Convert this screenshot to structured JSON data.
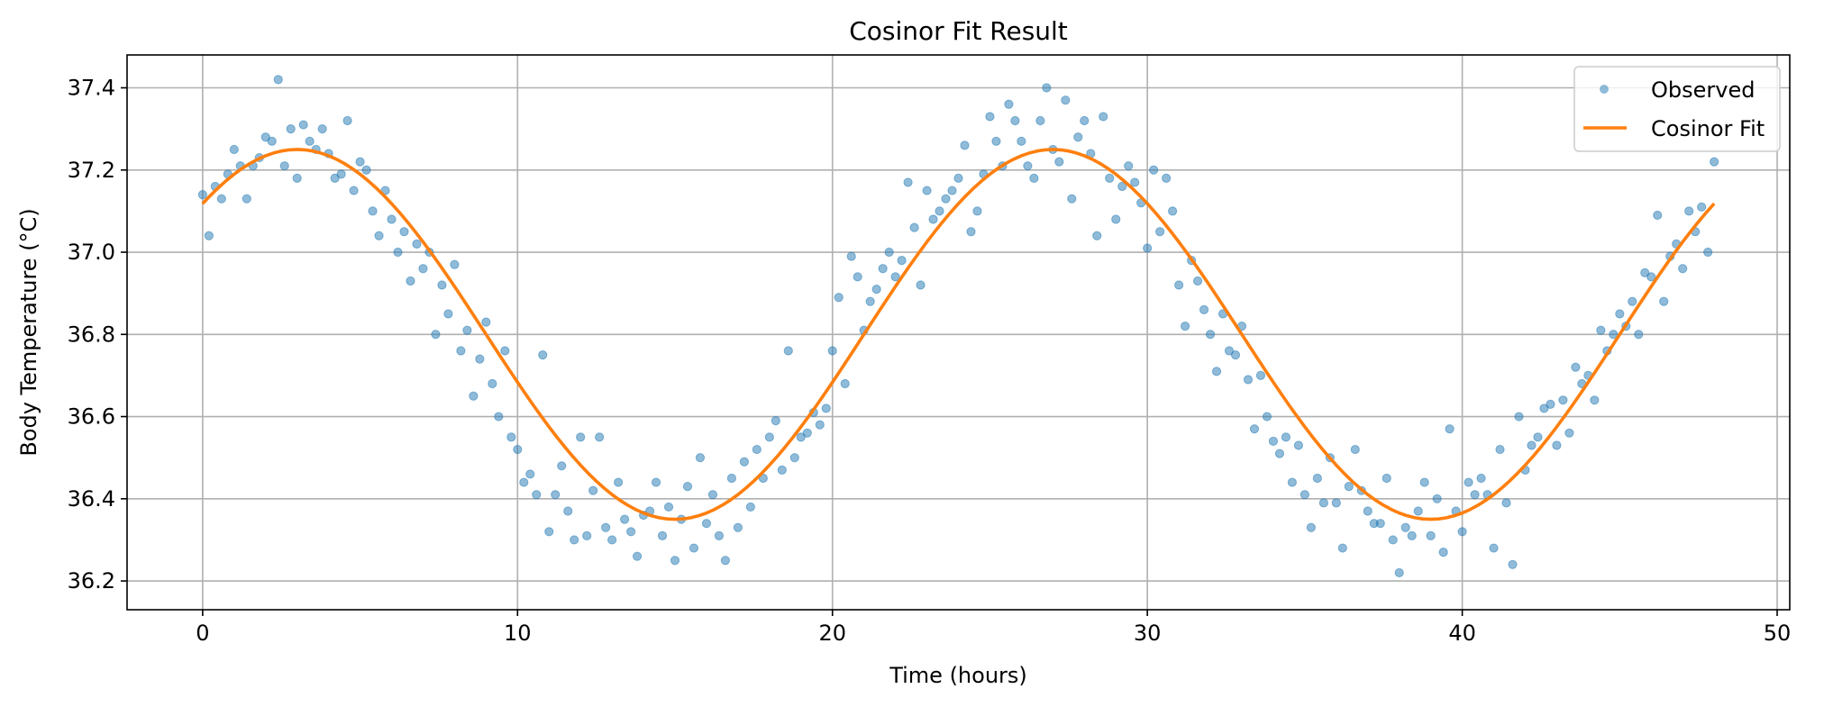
{
  "chart_data": {
    "type": "scatter",
    "title": "Cosinor Fit Result",
    "xlabel": "Time (hours)",
    "ylabel": "Body Temperature (°C)",
    "xlim": [
      -2.4,
      50.4
    ],
    "ylim": [
      36.13,
      37.48
    ],
    "xticks": [
      0,
      10,
      20,
      30,
      40,
      50
    ],
    "yticks": [
      36.2,
      36.4,
      36.6,
      36.8,
      37.0,
      37.2,
      37.4
    ],
    "grid": true,
    "legend_position": "top-right",
    "series": [
      {
        "name": "Observed",
        "kind": "markers",
        "color": "#1f77b4",
        "x": [
          0.0,
          0.2,
          0.4,
          0.6,
          0.8,
          1.0,
          1.2,
          1.4,
          1.6,
          1.8,
          2.0,
          2.2,
          2.4,
          2.6,
          2.8,
          3.0,
          3.2,
          3.4,
          3.6,
          3.8,
          4.0,
          4.2,
          4.4,
          4.6,
          4.8,
          5.0,
          5.2,
          5.4,
          5.6,
          5.8,
          6.0,
          6.2,
          6.4,
          6.6,
          6.8,
          7.0,
          7.2,
          7.4,
          7.6,
          7.8,
          8.0,
          8.2,
          8.4,
          8.6,
          8.8,
          9.0,
          9.2,
          9.4,
          9.6,
          9.8,
          10.0,
          10.2,
          10.4,
          10.6,
          10.8,
          11.0,
          11.2,
          11.4,
          11.6,
          11.8,
          12.0,
          12.2,
          12.4,
          12.6,
          12.8,
          13.0,
          13.2,
          13.4,
          13.6,
          13.8,
          14.0,
          14.2,
          14.4,
          14.6,
          14.8,
          15.0,
          15.2,
          15.4,
          15.6,
          15.8,
          16.0,
          16.2,
          16.4,
          16.6,
          16.8,
          17.0,
          17.2,
          17.4,
          17.6,
          17.8,
          18.0,
          18.2,
          18.4,
          18.6,
          18.8,
          19.0,
          19.2,
          19.4,
          19.6,
          19.8,
          20.0,
          20.2,
          20.4,
          20.6,
          20.8,
          21.0,
          21.2,
          21.4,
          21.6,
          21.8,
          22.0,
          22.2,
          22.4,
          22.6,
          22.8,
          23.0,
          23.2,
          23.4,
          23.6,
          23.8,
          24.0,
          24.2,
          24.4,
          24.6,
          24.8,
          25.0,
          25.2,
          25.4,
          25.6,
          25.8,
          26.0,
          26.2,
          26.4,
          26.6,
          26.8,
          27.0,
          27.2,
          27.4,
          27.6,
          27.8,
          28.0,
          28.2,
          28.4,
          28.6,
          28.8,
          29.0,
          29.2,
          29.4,
          29.6,
          29.8,
          30.0,
          30.2,
          30.4,
          30.6,
          30.8,
          31.0,
          31.2,
          31.4,
          31.6,
          31.8,
          32.0,
          32.2,
          32.4,
          32.6,
          32.8,
          33.0,
          33.2,
          33.4,
          33.6,
          33.8,
          34.0,
          34.2,
          34.4,
          34.6,
          34.8,
          35.0,
          35.2,
          35.4,
          35.6,
          35.8,
          36.0,
          36.2,
          36.4,
          36.6,
          36.8,
          37.0,
          37.2,
          37.4,
          37.6,
          37.8,
          38.0,
          38.2,
          38.4,
          38.6,
          38.8,
          39.0,
          39.2,
          39.4,
          39.6,
          39.8,
          40.0,
          40.2,
          40.4,
          40.6,
          40.8,
          41.0,
          41.2,
          41.4,
          41.6,
          41.8,
          42.0,
          42.2,
          42.4,
          42.6,
          42.8,
          43.0,
          43.2,
          43.4,
          43.6,
          43.8,
          44.0,
          44.2,
          44.4,
          44.6,
          44.8,
          45.0,
          45.2,
          45.4,
          45.6,
          45.8,
          46.0,
          46.2,
          46.4,
          46.6,
          46.8,
          47.0,
          47.2,
          47.4,
          47.6,
          47.8,
          48.0
        ],
        "y": [
          37.14,
          37.04,
          37.16,
          37.13,
          37.19,
          37.25,
          37.21,
          37.13,
          37.21,
          37.23,
          37.28,
          37.27,
          37.42,
          37.21,
          37.3,
          37.18,
          37.31,
          37.27,
          37.25,
          37.3,
          37.24,
          37.18,
          37.19,
          37.32,
          37.15,
          37.22,
          37.2,
          37.1,
          37.04,
          37.15,
          37.08,
          37.0,
          37.05,
          36.93,
          37.02,
          36.96,
          37.0,
          36.8,
          36.92,
          36.85,
          36.97,
          36.76,
          36.81,
          36.65,
          36.74,
          36.83,
          36.68,
          36.6,
          36.76,
          36.55,
          36.52,
          36.44,
          36.46,
          36.41,
          36.75,
          36.32,
          36.41,
          36.48,
          36.37,
          36.3,
          36.55,
          36.31,
          36.42,
          36.55,
          36.33,
          36.3,
          36.44,
          36.35,
          36.32,
          36.26,
          36.36,
          36.37,
          36.44,
          36.31,
          36.38,
          36.25,
          36.35,
          36.43,
          36.28,
          36.5,
          36.34,
          36.41,
          36.31,
          36.25,
          36.45,
          36.33,
          36.49,
          36.38,
          36.52,
          36.45,
          36.55,
          36.59,
          36.47,
          36.76,
          36.5,
          36.55,
          36.56,
          36.61,
          36.58,
          36.62,
          36.76,
          36.89,
          36.68,
          36.99,
          36.94,
          36.81,
          36.88,
          36.91,
          36.96,
          37.0,
          36.94,
          36.98,
          37.17,
          37.06,
          36.92,
          37.15,
          37.08,
          37.1,
          37.13,
          37.15,
          37.18,
          37.26,
          37.05,
          37.1,
          37.19,
          37.33,
          37.27,
          37.21,
          37.36,
          37.32,
          37.27,
          37.21,
          37.18,
          37.32,
          37.4,
          37.25,
          37.22,
          37.37,
          37.13,
          37.28,
          37.32,
          37.24,
          37.04,
          37.33,
          37.18,
          37.08,
          37.16,
          37.21,
          37.17,
          37.12,
          37.01,
          37.2,
          37.05,
          37.18,
          37.1,
          36.92,
          36.82,
          36.98,
          36.93,
          36.86,
          36.8,
          36.71,
          36.85,
          36.76,
          36.75,
          36.82,
          36.69,
          36.57,
          36.7,
          36.6,
          36.54,
          36.51,
          36.55,
          36.44,
          36.53,
          36.41,
          36.33,
          36.45,
          36.39,
          36.5,
          36.39,
          36.28,
          36.43,
          36.52,
          36.42,
          36.37,
          36.34,
          36.34,
          36.45,
          36.3,
          36.22,
          36.33,
          36.31,
          36.37,
          36.44,
          36.31,
          36.4,
          36.27,
          36.57,
          36.37,
          36.32,
          36.44,
          36.41,
          36.45,
          36.41,
          36.28,
          36.52,
          36.39,
          36.24,
          36.6,
          36.47,
          36.53,
          36.55,
          36.62,
          36.63,
          36.53,
          36.64,
          36.56,
          36.72,
          36.68,
          36.7,
          36.64,
          36.81,
          36.76,
          36.8,
          36.85,
          36.82,
          36.88,
          36.8,
          36.95,
          36.94,
          37.09,
          36.88,
          36.99,
          37.02,
          36.96,
          37.1,
          37.05,
          37.11,
          37.0,
          37.22
        ]
      },
      {
        "name": "Cosinor Fit",
        "kind": "line",
        "color": "#ff7f0e",
        "mesor": 36.8,
        "amplitude": 0.45,
        "period_hours": 24,
        "acrophase_hours": 3,
        "x": [
          0,
          1,
          2,
          3,
          4,
          5,
          6,
          7,
          8,
          9,
          10,
          11,
          12,
          13,
          14,
          15,
          16,
          17,
          18,
          19,
          20,
          21,
          22,
          23,
          24,
          25,
          26,
          27,
          28,
          29,
          30,
          31,
          32,
          33,
          34,
          35,
          36,
          37,
          38,
          39,
          40,
          41,
          42,
          43,
          44,
          45,
          46,
          47,
          48
        ],
        "y": [
          37.118,
          37.19,
          37.235,
          37.25,
          37.235,
          37.19,
          37.118,
          37.025,
          36.918,
          36.8,
          36.683,
          36.575,
          36.482,
          36.41,
          36.365,
          36.35,
          36.365,
          36.41,
          36.482,
          36.575,
          36.683,
          36.8,
          36.918,
          37.025,
          37.118,
          37.19,
          37.235,
          37.25,
          37.235,
          37.19,
          37.118,
          37.025,
          36.918,
          36.8,
          36.683,
          36.575,
          36.482,
          36.41,
          36.365,
          36.35,
          36.365,
          36.41,
          36.482,
          36.575,
          36.683,
          36.8,
          36.918,
          37.025,
          37.118
        ]
      }
    ]
  }
}
